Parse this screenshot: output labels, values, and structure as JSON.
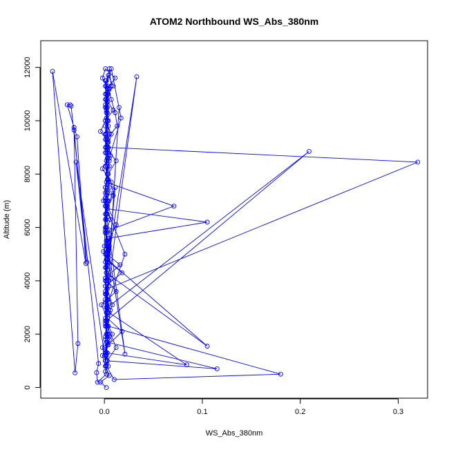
{
  "chart_data": {
    "type": "line",
    "title": "ATOM2 Northbound WS_Abs_380nm",
    "xlabel": "WS_Abs_380nm",
    "ylabel": "Altitude (m)",
    "xlim": [
      -0.065,
      0.33
    ],
    "ylim": [
      -400,
      13000
    ],
    "xticks": [
      {
        "value": 0.0,
        "label": "0.0"
      },
      {
        "value": 0.1,
        "label": "0.1"
      },
      {
        "value": 0.2,
        "label": "0.2"
      },
      {
        "value": 0.3,
        "label": "0.3"
      }
    ],
    "yticks": [
      {
        "value": 0,
        "label": "0"
      },
      {
        "value": 2000,
        "label": "2000"
      },
      {
        "value": 4000,
        "label": "4000"
      },
      {
        "value": 6000,
        "label": "6000"
      },
      {
        "value": 8000,
        "label": "8000"
      },
      {
        "value": 10000,
        "label": "10000"
      },
      {
        "value": 12000,
        "label": "12000"
      }
    ],
    "grid": false,
    "color": "#0000ff",
    "marker": "open-circle",
    "series": [
      {
        "x": [
          0.002,
          -0.004,
          0.005,
          0.001,
          -0.002,
          0.004,
          0.018,
          0.003,
          -0.003,
          0.012,
          0.001,
          0.016,
          -0.001,
          0.005,
          0.105,
          0.003,
          0.009,
          0.007,
          -0.002,
          0.006,
          0.004,
          -0.004,
          0.001,
          0.009,
          0.002,
          0.003,
          0.011,
          0.001,
          -0.002,
          0.004,
          0.007,
          0.011,
          0.013,
          0.002,
          0.004,
          0.001,
          0.003,
          0.005,
          0.001,
          0.006,
          0.001,
          0.004,
          0.002,
          0.018,
          0.001,
          0.003,
          0.005,
          0.084,
          0.002,
          0.001,
          0.002,
          0.008,
          0.003,
          0.32,
          0.004,
          0.005,
          0.003,
          0.001,
          0.002,
          0.007,
          0.017,
          0.005,
          -0.001,
          0.021,
          0.002,
          0.003,
          0.115,
          0.003,
          0.012,
          0.003,
          0.001,
          0.001,
          0.004,
          0.005,
          0.071,
          0.002,
          0.003,
          0.001,
          0.002,
          0.004,
          0.003,
          0.001,
          0.0,
          0.002,
          0.004,
          0.001,
          0.002,
          -0.007,
          -0.008,
          -0.006,
          -0.034,
          -0.035,
          -0.038,
          -0.031,
          -0.028,
          -0.019,
          -0.053,
          -0.03,
          -0.027,
          -0.031,
          -0.018,
          -0.029,
          0.001,
          -0.002,
          0.003,
          0.001,
          0.002,
          0.001,
          0.004,
          0.001,
          0.002,
          0.002,
          0.001,
          0.003,
          0.004,
          0.001,
          0.003,
          0.005,
          0.002,
          0.001,
          0.004,
          0.002,
          0.001,
          0.002,
          0.005,
          0.007,
          0.003,
          0.002,
          0.001,
          0.003,
          0.005,
          0.004,
          0.001,
          0.002,
          0.021,
          0.001,
          0.002,
          0.004,
          0.007,
          0.001,
          0.006,
          0.004,
          0.18,
          0.01,
          0.002,
          0.001,
          0.003,
          0.002,
          0.001,
          0.003,
          0.004,
          0.001,
          0.002,
          0.011,
          0.003,
          0.012,
          0.003,
          0.001,
          0.002,
          0.001,
          0.001,
          0.003,
          0.002,
          0.004,
          0.003,
          0.001,
          0.002,
          0.003,
          0.004,
          0.001,
          0.002,
          0.003,
          0.005,
          0.002,
          0.001,
          0.002,
          0.001,
          0.003,
          0.003,
          0.001,
          0.001,
          0.004,
          0.002,
          0.001,
          0.009,
          0.004,
          0.001,
          0.002,
          0.003,
          0.001,
          0.003,
          0.002,
          0.001,
          0.004,
          0.003,
          0.001,
          0.002,
          0.001,
          0.003,
          0.003,
          0.105,
          0.002,
          0.033,
          0.004,
          0.003,
          0.015,
          0.002,
          0.001,
          0.005,
          0.001,
          0.002,
          0.001,
          0.003,
          0.001,
          0.008,
          0.002,
          0.209,
          0.003,
          0.002,
          0.004,
          0.002,
          0.001,
          0.003,
          0.002,
          0.001,
          0.002,
          0.001,
          0.003,
          0.002,
          0.004,
          0.007,
          0.001,
          0.003,
          0.002,
          0.001,
          0.004,
          0.001,
          0.003,
          0.002,
          0.001,
          0.012,
          0.004,
          0.005,
          0.003,
          0.002,
          0.001,
          0.003,
          0.004,
          0.002,
          0.001
        ],
        "y": [
          0,
          200,
          450,
          800,
          1200,
          1600,
          2100,
          2600,
          3100,
          3600,
          4100,
          4600,
          5100,
          5600,
          6200,
          6700,
          7200,
          7700,
          8200,
          8700,
          9200,
          9600,
          10000,
          10400,
          10800,
          11200,
          11600,
          11950,
          11600,
          11200,
          10800,
          10300,
          9800,
          9300,
          8800,
          8300,
          7800,
          7300,
          6800,
          6300,
          5800,
          5300,
          4800,
          4300,
          3800,
          3300,
          2800,
          850,
          1300,
          1900,
          2500,
          3100,
          3700,
          8450,
          9000,
          9500,
          10000,
          10600,
          11300,
          11950,
          10100,
          8600,
          7000,
          5000,
          3000,
          1700,
          700,
          1000,
          1500,
          2300,
          3200,
          4100,
          5000,
          5900,
          6800,
          7700,
          8600,
          9500,
          10400,
          11300,
          9000,
          7000,
          5300,
          3500,
          2000,
          800,
          500,
          200,
          560,
          900,
          10550,
          10600,
          10600,
          9750,
          9400,
          4650,
          11850,
          550,
          1650,
          9650,
          4700,
          8450,
          1000,
          1500,
          2000,
          2500,
          3000,
          3500,
          4000,
          4500,
          5000,
          5500,
          6000,
          6500,
          7000,
          7500,
          8000,
          8500,
          9000,
          9500,
          10000,
          10500,
          11000,
          11500,
          11950,
          11300,
          10700,
          10100,
          9500,
          8900,
          8300,
          7700,
          7100,
          6500,
          1250,
          5900,
          5300,
          4700,
          4100,
          3500,
          2900,
          2300,
          500,
          300,
          800,
          1200,
          1600,
          2000,
          2400,
          2800,
          3200,
          3600,
          4000,
          7500,
          6800,
          6100,
          5400,
          4700,
          4000,
          3300,
          2600,
          1900,
          1200,
          800,
          1300,
          1800,
          2300,
          2800,
          3300,
          3800,
          4300,
          4800,
          5300,
          5800,
          6300,
          6800,
          7300,
          7800,
          8300,
          8800,
          9300,
          9800,
          10300,
          10800,
          11300,
          11700,
          11300,
          10800,
          10300,
          9800,
          9300,
          8800,
          8300,
          7800,
          7300,
          6800,
          6300,
          5800,
          5300,
          4800,
          1550,
          4300,
          11650,
          3800,
          3300,
          10500,
          2800,
          2300,
          1800,
          1300,
          800,
          600,
          1000,
          1500,
          2000,
          2500,
          8850,
          3000,
          3500,
          4000,
          4500,
          5000,
          5500,
          6000,
          6500,
          7000,
          7500,
          8000,
          8500,
          9000,
          9500,
          10000,
          10500,
          11000,
          11500,
          11000,
          10500,
          10000,
          9500,
          9000,
          8500,
          8000,
          7500,
          7000,
          6500,
          6000,
          5500,
          5000,
          4500,
          4000
        ]
      }
    ]
  }
}
